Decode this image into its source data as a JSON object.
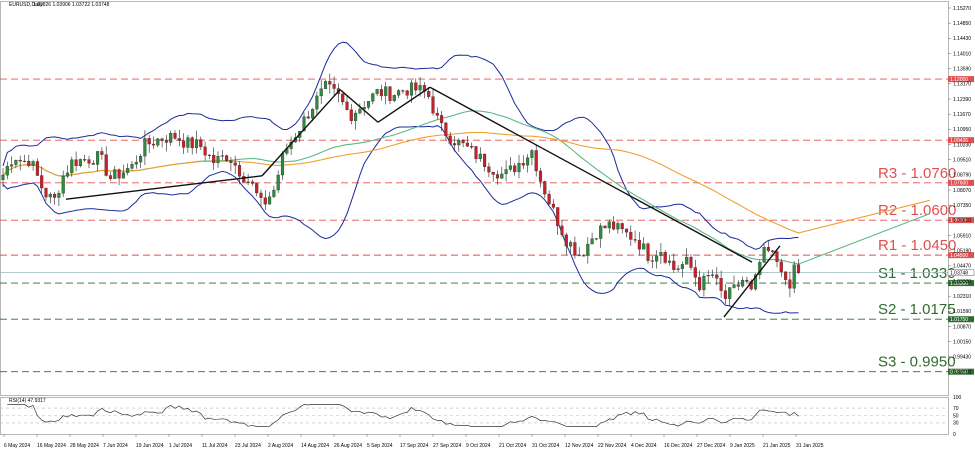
{
  "chart_data": {
    "type": "candlestick",
    "instrument_label": "EURUSD,Daily",
    "ohlc_readout": "1.03826 1.03906 1.03722 1.03748",
    "last_price_tag": "1.03748",
    "x_ticks": [
      "6 May 2024",
      "16 May 2024",
      "28 May 2024",
      "7 Jun 2024",
      "19 Jun 2024",
      "1 Jul 2024",
      "11 Jul 2024",
      "23 Jul 2024",
      "2 Aug 2024",
      "14 Aug 2024",
      "26 Aug 2024",
      "5 Sep 2024",
      "17 Sep 2024",
      "27 Sep 2024",
      "9 Oct 2024",
      "21 Oct 2024",
      "31 Oct 2024",
      "12 Nov 2024",
      "22 Nov 2024",
      "4 Dec 2024",
      "16 Dec 2024",
      "27 Dec 2024",
      "9 Jan 2025",
      "21 Jan 2025",
      "31 Jan 2025"
    ],
    "y_ticks": [
      "1.15270",
      "1.14850",
      "1.14430",
      "1.14010",
      "1.13590",
      "1.13170",
      "1.12390",
      "1.11670",
      "1.10950",
      "1.10230",
      "1.09510",
      "1.08790",
      "1.08070",
      "1.07350",
      "1.06630",
      "1.05910",
      "1.05190",
      "1.04470",
      "1.03300",
      "1.02310",
      "1.01590",
      "1.00870",
      "1.00150",
      "0.99430",
      "0.98710"
    ],
    "levels": [
      {
        "name": "R3",
        "value": 1.076,
        "label": "R3 - 1.0760",
        "tag": "1.07600",
        "color": "#e05050"
      },
      {
        "name": "R2",
        "value": 1.06,
        "label": "R2 - 1.0600",
        "tag": "1.06000",
        "color": "#e05050"
      },
      {
        "name": "R1",
        "value": 1.045,
        "label": "R1 - 1.0450",
        "tag": "1.04500",
        "color": "#e05050"
      },
      {
        "name": "S1",
        "value": 1.033,
        "label": "S1 - 1.0330",
        "tag": "1.03300",
        "color": "#2e6b2e"
      },
      {
        "name": "S2",
        "value": 1.0175,
        "label": "S2 - 1.0175",
        "tag": "1.01750",
        "color": "#2e6b2e"
      },
      {
        "name": "S3",
        "value": 0.995,
        "label": "S3 - 0.9950",
        "tag": "0.99500",
        "color": "#2e6b2e"
      }
    ],
    "extra_levels": [
      {
        "value": 1.1205,
        "tag": "1.12050"
      },
      {
        "value": 1.0943,
        "tag": "1.09426"
      }
    ],
    "rsi": {
      "label": "RSI(14) 47.9317",
      "ticks": [
        "100",
        "70",
        "50",
        "30",
        "0"
      ],
      "last": 47.93
    },
    "ylim": [
      0.985,
      1.154
    ],
    "colors": {
      "up": "#2e8b3e",
      "down": "#c8202a",
      "wick": "#222222",
      "bands": "#1c2a9c",
      "ma_mid": "#5cb887",
      "ma_slow": "#f0a030",
      "trend": "#111111",
      "grid": "#cfcfcf"
    }
  }
}
